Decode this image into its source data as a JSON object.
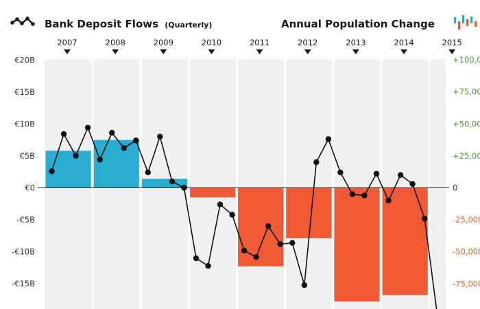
{
  "chart_data": {
    "type": "bar+line",
    "title_left": "Bank Deposit Flows",
    "title_left_sub": "(Quarterly)",
    "title_right": "Annual Population Change",
    "years": [
      "2007",
      "2008",
      "2009",
      "2010",
      "2011",
      "2012",
      "2013",
      "2014",
      "2015"
    ],
    "left_axis": {
      "ticks": [
        20,
        15,
        10,
        5,
        0,
        -5,
        -10,
        -15
      ],
      "tick_labels": [
        "€20B",
        "€15B",
        "€10B",
        "€5B",
        "€0",
        "-€5B",
        "-€10B",
        "-€15B"
      ],
      "range": [
        -19,
        20
      ]
    },
    "right_axis": {
      "ticks": [
        100000,
        75000,
        50000,
        25000,
        0,
        -25000,
        -50000,
        -75000
      ],
      "tick_labels": [
        "+100,000",
        "+75,000",
        "+50,000",
        "+25,000",
        "0",
        "-25,000",
        "-50,000",
        "-75,000"
      ],
      "range": [
        -95000,
        100000
      ]
    },
    "bars": {
      "name": "Bank deposit flows (€B)",
      "categories": [
        "2007",
        "2008",
        "2009",
        "2010",
        "2011",
        "2012",
        "2013",
        "2014"
      ],
      "values": [
        5.8,
        7.5,
        1.4,
        -1.5,
        -12.3,
        -7.9,
        -17.8,
        -16.8
      ]
    },
    "line": {
      "name": "Population change (quarterly)",
      "x": [
        2007.0,
        2007.25,
        2007.5,
        2007.75,
        2008.0,
        2008.25,
        2008.5,
        2008.75,
        2009.0,
        2009.25,
        2009.5,
        2009.75,
        2010.0,
        2010.25,
        2010.5,
        2010.75,
        2011.0,
        2011.25,
        2011.5,
        2011.75,
        2012.0,
        2012.25,
        2012.5,
        2012.75,
        2013.0,
        2013.25,
        2013.5,
        2013.75,
        2014.0,
        2014.25,
        2014.5,
        2014.75,
        2015.0
      ],
      "values": [
        13000,
        42000,
        25000,
        47000,
        22000,
        43000,
        31000,
        37000,
        12000,
        40000,
        5000,
        0,
        -55000,
        -61000,
        -13000,
        -21000,
        -49000,
        -54000,
        -30000,
        -44000,
        -43000,
        -76000,
        20000,
        38000,
        12000,
        -5000,
        -6000,
        11000,
        -10000,
        10000,
        3000,
        -24000,
        -95000
      ]
    },
    "colors": {
      "positive_bar": "#29acd2",
      "negative_bar": "#f05a34",
      "plot_background": "#f0f0f2",
      "line": "#111111",
      "right_axis_positive": "#4a9a2a",
      "right_axis_negative": "#d9622b"
    },
    "icons": {
      "left": "line-chart-icon",
      "right": "bar-chart-icon"
    }
  }
}
